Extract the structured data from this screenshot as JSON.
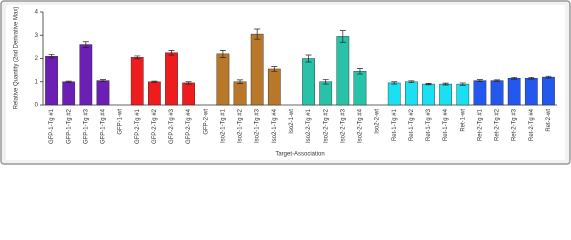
{
  "chart_data": {
    "type": "bar",
    "y_label": "Relative Quantity (2nd Derivative Max)",
    "x_label": "Target-Association",
    "categories": [
      "GFP-1-Tg #1",
      "GFP-1-Tg #2",
      "GFP-1-Tg #3",
      "GFP-1-Tg #4",
      "GFP-1-wt",
      "GFP-2-Tg #1",
      "GFP-2-Tg #2",
      "GFP-2-Tg #3",
      "GFP-2-Tg #4",
      "GFP-2-wt",
      "Iso2-1-Tg #1",
      "Iso2-1-Tg #2",
      "Iso2-1-Tg #3",
      "Iso2-1-Tg #4",
      "Iso2-1-wt",
      "Iso2-2-Tg #1",
      "Iso2-2-Tg #2",
      "Iso2-2-Tg #3",
      "Iso2-2-Tg #4",
      "Iso2-2-wt",
      "Ret-1-Tg #1",
      "Ret-1-Tg #2",
      "Ret-1-Tg #3",
      "Ret-1-Tg #4",
      "Ret-1-wt",
      "Ret-2-Tg #1",
      "Ret-2-Tg #2",
      "Ret-2-Tg #3",
      "Ret-2-Tg #4",
      "Ret-2-wt"
    ],
    "values": [
      2.1,
      1.0,
      2.6,
      1.05,
      0,
      2.05,
      1.0,
      2.25,
      0.95,
      0,
      2.2,
      1.0,
      3.05,
      1.55,
      0,
      2.0,
      1.0,
      2.95,
      1.45,
      0,
      0.95,
      1.0,
      0.9,
      0.9,
      0.9,
      1.05,
      1.05,
      1.15,
      1.15,
      1.2
    ],
    "errors": [
      0.08,
      0.03,
      0.12,
      0.04,
      0,
      0.06,
      0.03,
      0.1,
      0.05,
      0,
      0.15,
      0.08,
      0.22,
      0.1,
      0,
      0.15,
      0.1,
      0.25,
      0.12,
      0,
      0.05,
      0.04,
      0.03,
      0.04,
      0.05,
      0.04,
      0.03,
      0.04,
      0.04,
      0.04
    ],
    "colors": [
      "#6b1fb5",
      "#6b1fb5",
      "#6b1fb5",
      "#6b1fb5",
      "#6b1fb5",
      "#ee1c1c",
      "#ee1c1c",
      "#ee1c1c",
      "#ee1c1c",
      "#ee1c1c",
      "#b8782a",
      "#b8782a",
      "#b8782a",
      "#b8782a",
      "#b8782a",
      "#27c2a8",
      "#27c2a8",
      "#27c2a8",
      "#27c2a8",
      "#27c2a8",
      "#1ae0f2",
      "#1ae0f2",
      "#1ae0f2",
      "#1ae0f2",
      "#1ae0f2",
      "#2457ee",
      "#2457ee",
      "#2457ee",
      "#2457ee",
      "#2457ee"
    ],
    "ylim": [
      0,
      4
    ],
    "yticks": [
      0,
      1,
      2,
      3,
      4
    ]
  }
}
